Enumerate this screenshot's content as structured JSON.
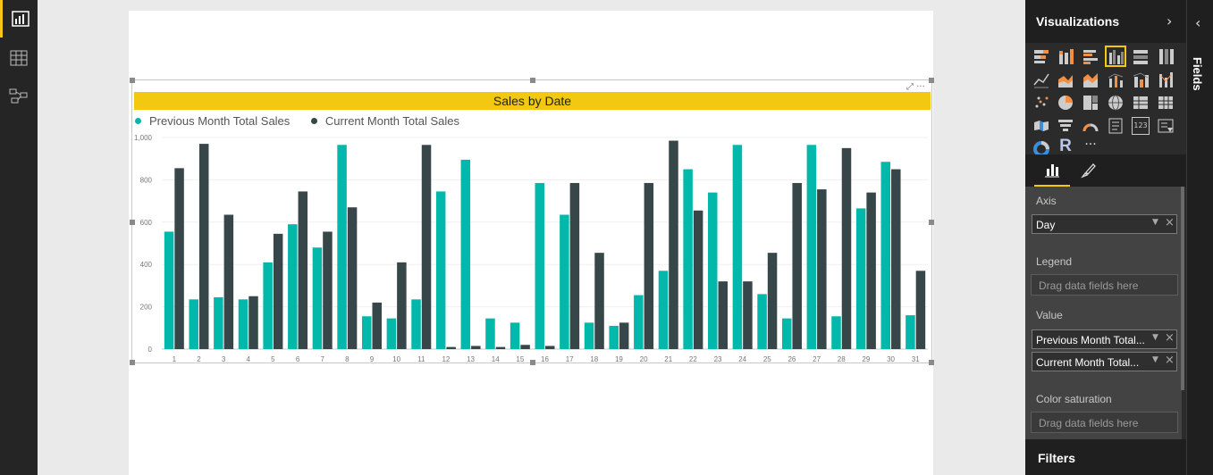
{
  "left_rail": {
    "items": [
      {
        "name": "report-view-icon",
        "active": true
      },
      {
        "name": "data-view-icon",
        "active": false
      },
      {
        "name": "relationships-view-icon",
        "active": false
      }
    ]
  },
  "colors": {
    "accent": "#f2c811",
    "previous_series": "#01b8aa",
    "current_series": "#374649"
  },
  "visual": {
    "focus_icons": "⤢ ···"
  },
  "chart_data": {
    "type": "bar",
    "title": "Sales by Date",
    "legend_position": "top-left",
    "grid": true,
    "xlabel": "",
    "ylabel": "",
    "ylim": [
      0,
      1000
    ],
    "yticks": [
      "0",
      "200",
      "400",
      "600",
      "800",
      "1,000"
    ],
    "yticks_values": [
      0,
      200,
      400,
      600,
      800,
      1000
    ],
    "categories": [
      "1",
      "2",
      "3",
      "4",
      "5",
      "6",
      "7",
      "8",
      "9",
      "10",
      "11",
      "12",
      "13",
      "14",
      "15",
      "16",
      "17",
      "18",
      "19",
      "20",
      "21",
      "22",
      "23",
      "24",
      "25",
      "26",
      "27",
      "28",
      "29",
      "30",
      "31"
    ],
    "series": [
      {
        "name": "Previous Month Total Sales",
        "values": [
          555,
          235,
          245,
          235,
          410,
          590,
          480,
          965,
          155,
          145,
          235,
          745,
          895,
          145,
          125,
          785,
          635,
          125,
          110,
          255,
          370,
          850,
          740,
          965,
          260,
          145,
          965,
          155,
          665,
          885,
          160
        ]
      },
      {
        "name": "Current Month Total Sales",
        "values": [
          855,
          970,
          635,
          250,
          545,
          745,
          555,
          670,
          220,
          410,
          965,
          10,
          15,
          10,
          20,
          15,
          785,
          455,
          125,
          785,
          985,
          655,
          320,
          320,
          455,
          785,
          755,
          950,
          740,
          850,
          370
        ]
      }
    ]
  },
  "visualizations_pane": {
    "title": "Visualizations",
    "collapse_glyph": "›",
    "more_label": "···",
    "tabs": [
      {
        "name": "fields-tab-icon",
        "active": true
      },
      {
        "name": "format-tab-icon",
        "active": false
      }
    ],
    "wells": {
      "axis_label": "Axis",
      "axis_field": "Day",
      "legend_label": "Legend",
      "legend_placeholder": "Drag data fields here",
      "value_label": "Value",
      "value_fields": [
        "Previous Month Total...",
        "Current Month Total..."
      ],
      "color_saturation_label": "Color saturation",
      "color_saturation_placeholder": "Drag data fields here"
    },
    "r_label": "R",
    "table_icon_text": "123"
  },
  "filters": {
    "title": "Filters"
  },
  "fields_pane": {
    "label": "Fields",
    "collapse_glyph": "‹"
  }
}
